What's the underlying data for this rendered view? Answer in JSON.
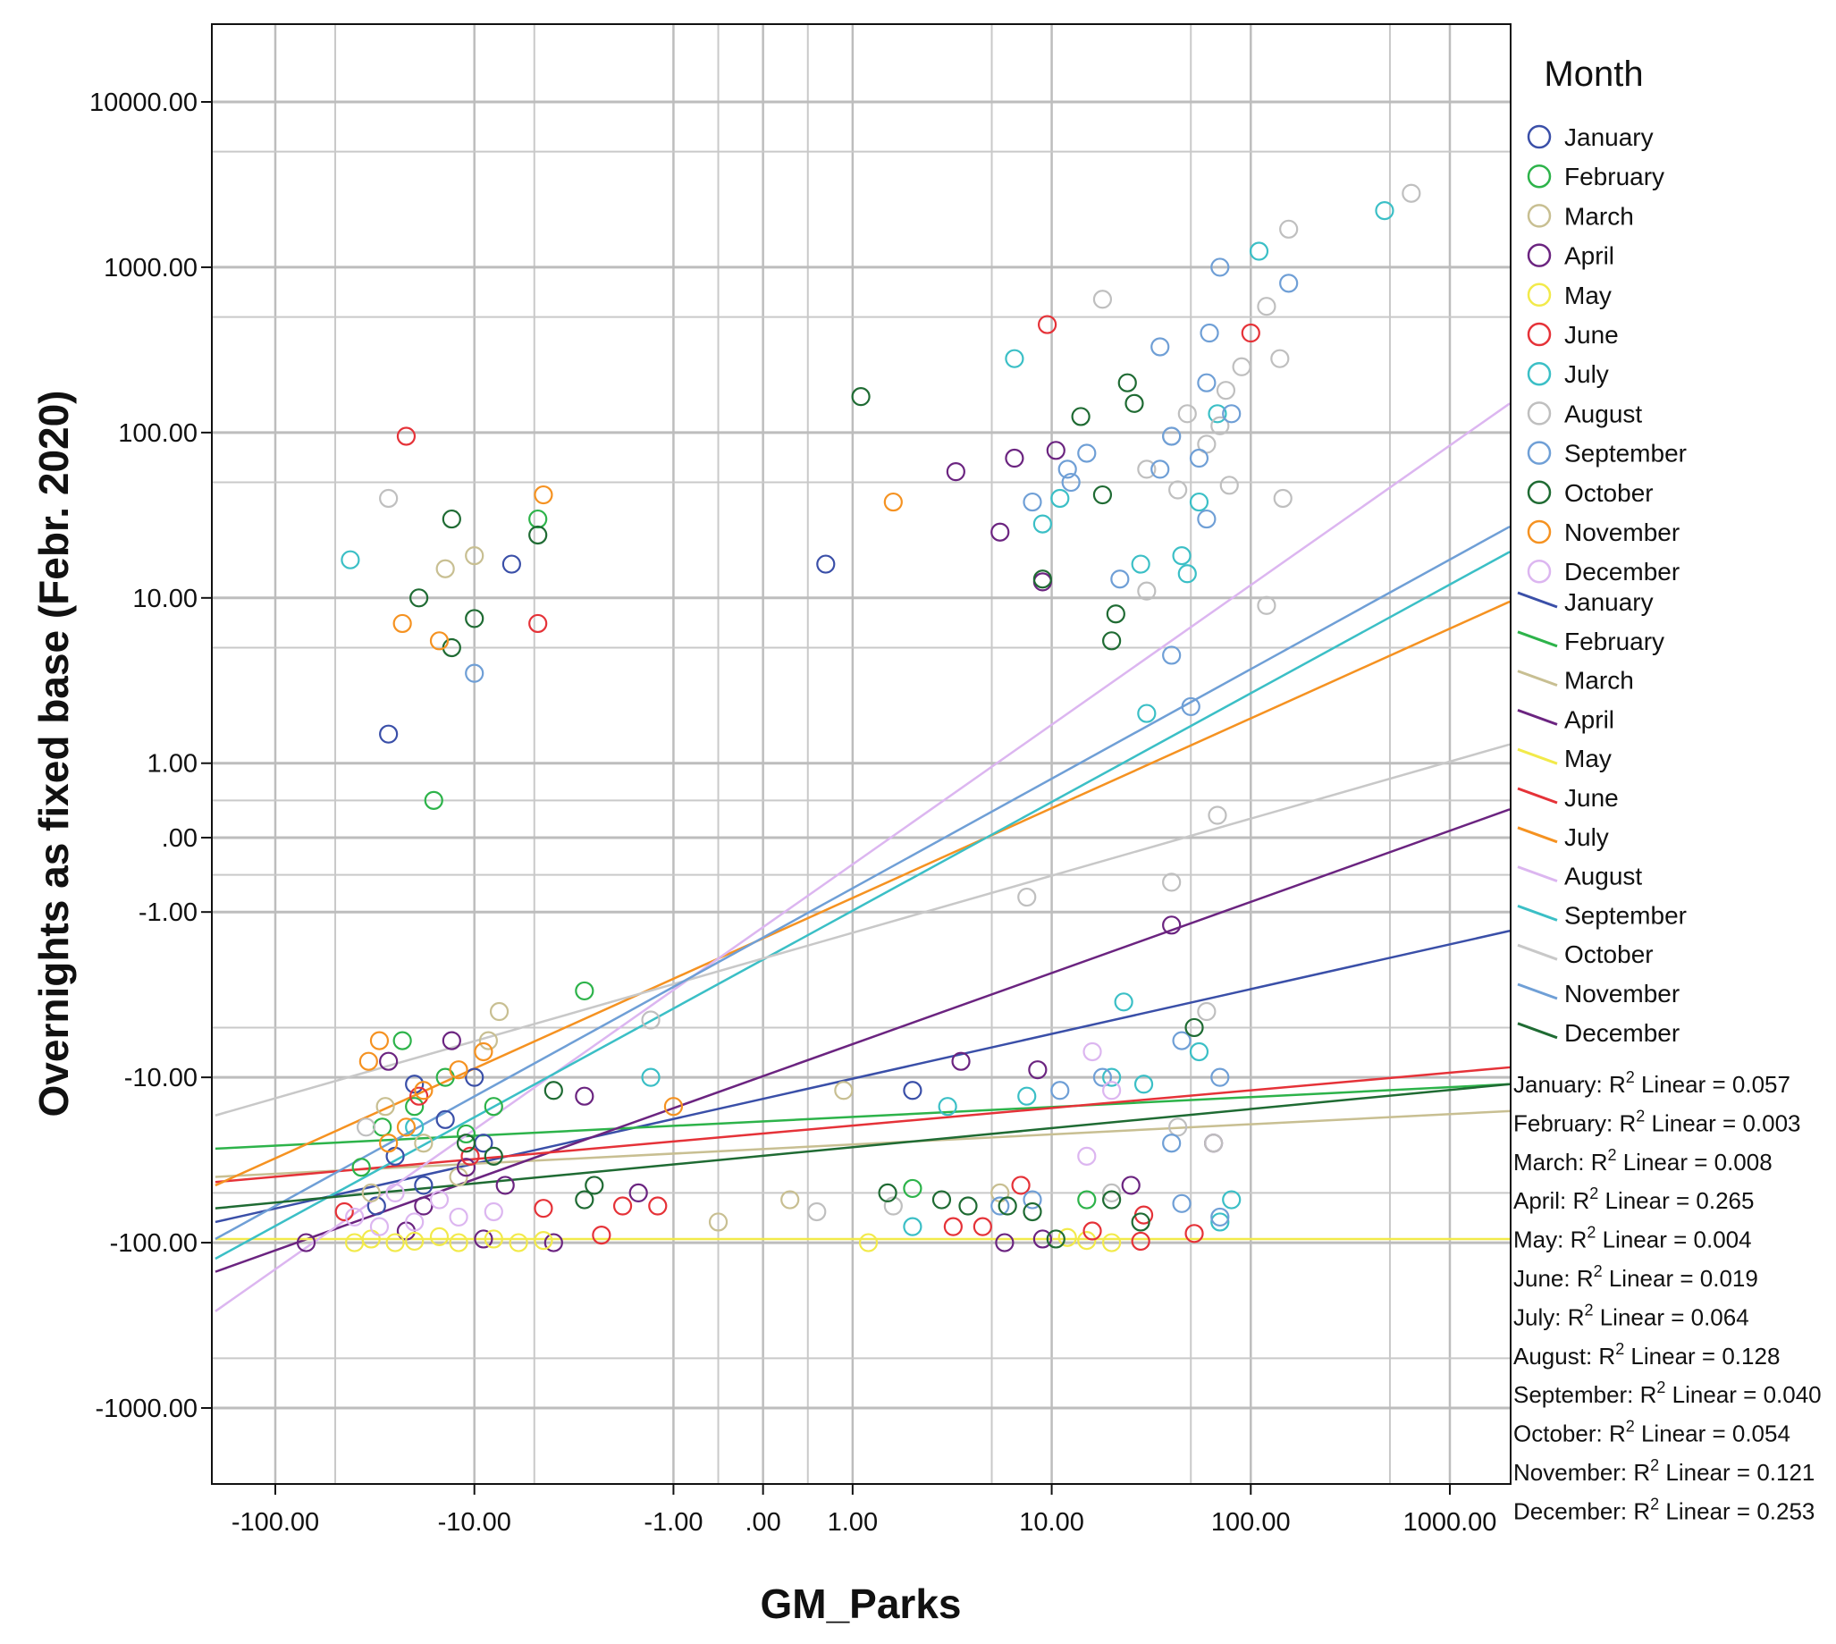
{
  "chart_data": {
    "type": "scatter",
    "xlabel": "GM_Parks",
    "ylabel": "Overnights as fixed base (Febr. 2020)",
    "x_scale": "symmetric-log",
    "y_scale": "symmetric-log",
    "x_ticks": [
      "-100.00",
      "-10.00",
      "-1.00",
      ".00",
      "1.00",
      "10.00",
      "100.00",
      "1000.00"
    ],
    "y_ticks": [
      "10000.00",
      "1000.00",
      "100.00",
      "10.00",
      "1.00",
      ".00",
      "-1.00",
      "-10.00",
      "-100.00",
      "-1000.00"
    ],
    "legend_title": "Month",
    "legend_markers": [
      "January",
      "February",
      "March",
      "April",
      "May",
      "June",
      "July",
      "August",
      "September",
      "October",
      "November",
      "December"
    ],
    "legend_lines": [
      "January",
      "February",
      "March",
      "April",
      "May",
      "June",
      "July",
      "August",
      "September",
      "October",
      "November",
      "December"
    ],
    "marker_colors": [
      "#3a4fa8",
      "#2db34a",
      "#c8bf92",
      "#6b2480",
      "#f2ea4a",
      "#e53238",
      "#3bbfc6",
      "#bfbfbf",
      "#6f9fd6",
      "#1f6b33",
      "#f59221",
      "#dcb6f0"
    ],
    "line_colors": [
      "#3a4fa8",
      "#2db34a",
      "#c8bf92",
      "#6b2480",
      "#f2ea4a",
      "#e53238",
      "#f59221",
      "#dcb6f0",
      "#3bbfc6",
      "#c8c8c8",
      "#6f9fd6",
      "#1f6b33"
    ],
    "r_squared": [
      {
        "month": "January:",
        "value": "0.057"
      },
      {
        "month": "February:",
        "value": "0.003"
      },
      {
        "month": "March:",
        "value": "0.008"
      },
      {
        "month": "April:",
        "value": "0.265"
      },
      {
        "month": "May:",
        "value": "0.004"
      },
      {
        "month": "June:",
        "value": "0.019"
      },
      {
        "month": "July:",
        "value": "0.064"
      },
      {
        "month": "August:",
        "value": "0.128"
      },
      {
        "month": "September:",
        "value": "0.040"
      },
      {
        "month": "October:",
        "value": "0.054"
      },
      {
        "month": "November:",
        "value": "0.121"
      },
      {
        "month": "December:",
        "value": "0.253"
      }
    ],
    "r2_label": "R",
    "r2_exp": "2",
    "r2_linear": "Linear =",
    "fit_lines": [
      {
        "month": "January",
        "start": [
          -200,
          -75
        ],
        "end": [
          2000,
          -1.3
        ]
      },
      {
        "month": "February",
        "start": [
          -200,
          -27
        ],
        "end": [
          2000,
          -11
        ]
      },
      {
        "month": "March",
        "start": [
          -200,
          -40
        ],
        "end": [
          2000,
          -16
        ]
      },
      {
        "month": "April",
        "start": [
          -200,
          -150
        ],
        "end": [
          2000,
          0.38
        ]
      },
      {
        "month": "May",
        "start": [
          -200,
          -95
        ],
        "end": [
          2000,
          -95
        ]
      },
      {
        "month": "June",
        "start": [
          -200,
          -43
        ],
        "end": [
          2000,
          -8.7
        ]
      },
      {
        "month": "July",
        "start": [
          -200,
          -45
        ],
        "end": [
          2000,
          9.5
        ]
      },
      {
        "month": "August",
        "start": [
          -200,
          -260
        ],
        "end": [
          2000,
          150
        ]
      },
      {
        "month": "September",
        "start": [
          -200,
          -125
        ],
        "end": [
          2000,
          19
        ]
      },
      {
        "month": "October",
        "start": [
          -200,
          -17
        ],
        "end": [
          2000,
          1.3
        ]
      },
      {
        "month": "November",
        "start": [
          -200,
          -95
        ],
        "end": [
          2000,
          27
        ]
      },
      {
        "month": "December",
        "start": [
          -200,
          -62
        ],
        "end": [
          2000,
          -11
        ]
      }
    ],
    "points": [
      {
        "m": 1,
        "x": -27,
        "y": 1.5
      },
      {
        "m": 1,
        "x": -6.5,
        "y": 16
      },
      {
        "m": 1,
        "x": 0.7,
        "y": 16
      },
      {
        "m": 1,
        "x": -20,
        "y": -11
      },
      {
        "m": 1,
        "x": -10,
        "y": -10
      },
      {
        "m": 1,
        "x": -14,
        "y": -18
      },
      {
        "m": 1,
        "x": -25,
        "y": -30
      },
      {
        "m": 1,
        "x": -18,
        "y": -45
      },
      {
        "m": 1,
        "x": -9,
        "y": -25
      },
      {
        "m": 1,
        "x": -31,
        "y": -60
      },
      {
        "m": 1,
        "x": 2,
        "y": -12
      },
      {
        "m": 2,
        "x": -16,
        "y": 0.5
      },
      {
        "m": 2,
        "x": -4.8,
        "y": 30
      },
      {
        "m": 2,
        "x": -2.8,
        "y": -3
      },
      {
        "m": 2,
        "x": -23,
        "y": -6
      },
      {
        "m": 2,
        "x": -14,
        "y": -10
      },
      {
        "m": 2,
        "x": -29,
        "y": -20
      },
      {
        "m": 2,
        "x": -37,
        "y": -35
      },
      {
        "m": 2,
        "x": -11,
        "y": -22
      },
      {
        "m": 2,
        "x": -20,
        "y": -15
      },
      {
        "m": 2,
        "x": -8,
        "y": -15
      },
      {
        "m": 2,
        "x": 15,
        "y": -55
      },
      {
        "m": 2,
        "x": 2,
        "y": -47
      },
      {
        "m": 3,
        "x": -14,
        "y": 15
      },
      {
        "m": 3,
        "x": -10,
        "y": 18
      },
      {
        "m": 3,
        "x": -7.5,
        "y": -4
      },
      {
        "m": 3,
        "x": -8.5,
        "y": -6
      },
      {
        "m": 3,
        "x": -28,
        "y": -15
      },
      {
        "m": 3,
        "x": -18,
        "y": -25
      },
      {
        "m": 3,
        "x": -12,
        "y": -40
      },
      {
        "m": 3,
        "x": -0.5,
        "y": -75
      },
      {
        "m": 3,
        "x": 0.3,
        "y": -55
      },
      {
        "m": 3,
        "x": 0.9,
        "y": -12
      },
      {
        "m": 3,
        "x": 5.5,
        "y": -50
      },
      {
        "m": 3,
        "x": -33,
        "y": -50
      },
      {
        "m": 4,
        "x": 3.3,
        "y": 58
      },
      {
        "m": 4,
        "x": 6.5,
        "y": 70
      },
      {
        "m": 4,
        "x": 10.5,
        "y": 78
      },
      {
        "m": 4,
        "x": 5.5,
        "y": 25
      },
      {
        "m": 4,
        "x": 9,
        "y": 12.5
      },
      {
        "m": 4,
        "x": -13,
        "y": -6
      },
      {
        "m": 4,
        "x": -27,
        "y": -8
      },
      {
        "m": 4,
        "x": 3.5,
        "y": -8
      },
      {
        "m": 4,
        "x": 8.5,
        "y": -9
      },
      {
        "m": 4,
        "x": 40,
        "y": -1.2
      },
      {
        "m": 4,
        "x": 65,
        "y": -25
      },
      {
        "m": 4,
        "x": -2.8,
        "y": -13
      },
      {
        "m": 4,
        "x": -1.5,
        "y": -50
      },
      {
        "m": 4,
        "x": -70,
        "y": -100
      },
      {
        "m": 4,
        "x": -4,
        "y": -100
      },
      {
        "m": 4,
        "x": 5.8,
        "y": -100
      },
      {
        "m": 4,
        "x": 9,
        "y": -95
      },
      {
        "m": 4,
        "x": -9,
        "y": -95
      },
      {
        "m": 4,
        "x": -22,
        "y": -85
      },
      {
        "m": 4,
        "x": 25,
        "y": -45
      },
      {
        "m": 4,
        "x": -11,
        "y": -35
      },
      {
        "m": 4,
        "x": -18,
        "y": -60
      },
      {
        "m": 4,
        "x": -7,
        "y": -45
      },
      {
        "m": 5,
        "x": -40,
        "y": -100
      },
      {
        "m": 5,
        "x": -33,
        "y": -95
      },
      {
        "m": 5,
        "x": -25,
        "y": -100
      },
      {
        "m": 5,
        "x": -20,
        "y": -98
      },
      {
        "m": 5,
        "x": -15,
        "y": -92
      },
      {
        "m": 5,
        "x": -12,
        "y": -100
      },
      {
        "m": 5,
        "x": -8,
        "y": -95
      },
      {
        "m": 5,
        "x": -6,
        "y": -100
      },
      {
        "m": 5,
        "x": -4.5,
        "y": -97
      },
      {
        "m": 5,
        "x": 1.2,
        "y": -100
      },
      {
        "m": 5,
        "x": 15,
        "y": -97
      },
      {
        "m": 5,
        "x": 20,
        "y": -100
      },
      {
        "m": 5,
        "x": 12,
        "y": -93
      },
      {
        "m": 6,
        "x": -22,
        "y": 95
      },
      {
        "m": 6,
        "x": -4.8,
        "y": 7
      },
      {
        "m": 6,
        "x": 9.5,
        "y": 450
      },
      {
        "m": 6,
        "x": 100,
        "y": 400
      },
      {
        "m": 6,
        "x": -19,
        "y": -13
      },
      {
        "m": 6,
        "x": -10.5,
        "y": -30
      },
      {
        "m": 6,
        "x": -2.3,
        "y": -90
      },
      {
        "m": 6,
        "x": -45,
        "y": -65
      },
      {
        "m": 6,
        "x": -4.5,
        "y": -62
      },
      {
        "m": 6,
        "x": -1.8,
        "y": -60
      },
      {
        "m": 6,
        "x": -1.2,
        "y": -60
      },
      {
        "m": 6,
        "x": 3.2,
        "y": -80
      },
      {
        "m": 6,
        "x": 4.5,
        "y": -80
      },
      {
        "m": 6,
        "x": 7,
        "y": -45
      },
      {
        "m": 6,
        "x": 16,
        "y": -85
      },
      {
        "m": 6,
        "x": 29,
        "y": -68
      },
      {
        "m": 6,
        "x": 52,
        "y": -88
      },
      {
        "m": 6,
        "x": 28,
        "y": -98
      },
      {
        "m": 7,
        "x": -42,
        "y": 17
      },
      {
        "m": 7,
        "x": 6.5,
        "y": 280
      },
      {
        "m": 7,
        "x": 9,
        "y": 28
      },
      {
        "m": 7,
        "x": 11,
        "y": 40
      },
      {
        "m": 7,
        "x": 28,
        "y": 16
      },
      {
        "m": 7,
        "x": 30,
        "y": 2
      },
      {
        "m": 7,
        "x": 48,
        "y": 14
      },
      {
        "m": 7,
        "x": 45,
        "y": 18
      },
      {
        "m": 7,
        "x": 55,
        "y": 38
      },
      {
        "m": 7,
        "x": 68,
        "y": 130
      },
      {
        "m": 7,
        "x": 110,
        "y": 1250
      },
      {
        "m": 7,
        "x": 470,
        "y": 2200
      },
      {
        "m": 7,
        "x": 23,
        "y": -3.5
      },
      {
        "m": 7,
        "x": 7.5,
        "y": -13
      },
      {
        "m": 7,
        "x": 3,
        "y": -15
      },
      {
        "m": 7,
        "x": 20,
        "y": -10
      },
      {
        "m": 7,
        "x": 29,
        "y": -11
      },
      {
        "m": 7,
        "x": 55,
        "y": -7
      },
      {
        "m": 7,
        "x": 2,
        "y": -80
      },
      {
        "m": 7,
        "x": 70,
        "y": -75
      },
      {
        "m": 7,
        "x": 80,
        "y": -55
      },
      {
        "m": 7,
        "x": -20,
        "y": -20
      },
      {
        "m": 7,
        "x": -1.3,
        "y": -10
      },
      {
        "m": 8,
        "x": -27,
        "y": 40
      },
      {
        "m": 8,
        "x": 18,
        "y": 640
      },
      {
        "m": 8,
        "x": 155,
        "y": 1700
      },
      {
        "m": 8,
        "x": 640,
        "y": 2800
      },
      {
        "m": 8,
        "x": 120,
        "y": 580
      },
      {
        "m": 8,
        "x": 140,
        "y": 280
      },
      {
        "m": 8,
        "x": 90,
        "y": 250
      },
      {
        "m": 8,
        "x": 75,
        "y": 180
      },
      {
        "m": 8,
        "x": 70,
        "y": 110
      },
      {
        "m": 8,
        "x": 60,
        "y": 85
      },
      {
        "m": 8,
        "x": 48,
        "y": 130
      },
      {
        "m": 8,
        "x": 40,
        "y": 95
      },
      {
        "m": 8,
        "x": 30,
        "y": 60
      },
      {
        "m": 8,
        "x": 43,
        "y": 45
      },
      {
        "m": 8,
        "x": 78,
        "y": 48
      },
      {
        "m": 8,
        "x": 145,
        "y": 40
      },
      {
        "m": 8,
        "x": 30,
        "y": 11
      },
      {
        "m": 8,
        "x": 120,
        "y": 9
      },
      {
        "m": 8,
        "x": 68,
        "y": 0.3
      },
      {
        "m": 8,
        "x": 7.5,
        "y": -0.8
      },
      {
        "m": 8,
        "x": 40,
        "y": -0.6
      },
      {
        "m": 8,
        "x": -1.3,
        "y": -4.5
      },
      {
        "m": 8,
        "x": 60,
        "y": -4
      },
      {
        "m": 8,
        "x": 65,
        "y": -25
      },
      {
        "m": 8,
        "x": 43,
        "y": -20
      },
      {
        "m": 8,
        "x": 0.6,
        "y": -65
      },
      {
        "m": 8,
        "x": 1.6,
        "y": -60
      },
      {
        "m": 8,
        "x": 20,
        "y": -50
      },
      {
        "m": 8,
        "x": -35,
        "y": -20
      },
      {
        "m": 9,
        "x": -10,
        "y": 3.5
      },
      {
        "m": 9,
        "x": 8,
        "y": 38
      },
      {
        "m": 9,
        "x": 12,
        "y": 60
      },
      {
        "m": 9,
        "x": 12.5,
        "y": 50
      },
      {
        "m": 9,
        "x": 15,
        "y": 75
      },
      {
        "m": 9,
        "x": 35,
        "y": 330
      },
      {
        "m": 9,
        "x": 35,
        "y": 60
      },
      {
        "m": 9,
        "x": 40,
        "y": 95
      },
      {
        "m": 9,
        "x": 55,
        "y": 70
      },
      {
        "m": 9,
        "x": 60,
        "y": 200
      },
      {
        "m": 9,
        "x": 62,
        "y": 400
      },
      {
        "m": 9,
        "x": 70,
        "y": 1000
      },
      {
        "m": 9,
        "x": 155,
        "y": 800
      },
      {
        "m": 9,
        "x": 80,
        "y": 130
      },
      {
        "m": 9,
        "x": 60,
        "y": 30
      },
      {
        "m": 9,
        "x": 40,
        "y": 4.5
      },
      {
        "m": 9,
        "x": 50,
        "y": 2.2
      },
      {
        "m": 9,
        "x": 22,
        "y": 13
      },
      {
        "m": 9,
        "x": 18,
        "y": -10
      },
      {
        "m": 9,
        "x": 11,
        "y": -12
      },
      {
        "m": 9,
        "x": 45,
        "y": -6
      },
      {
        "m": 9,
        "x": 70,
        "y": -10
      },
      {
        "m": 9,
        "x": 40,
        "y": -25
      },
      {
        "m": 9,
        "x": 5.5,
        "y": -60
      },
      {
        "m": 9,
        "x": 8,
        "y": -55
      },
      {
        "m": 9,
        "x": 45,
        "y": -58
      },
      {
        "m": 9,
        "x": 70,
        "y": -70
      },
      {
        "m": 10,
        "x": -19,
        "y": 10
      },
      {
        "m": 10,
        "x": -13,
        "y": 30
      },
      {
        "m": 10,
        "x": -4.8,
        "y": 24
      },
      {
        "m": 10,
        "x": -10,
        "y": 7.5
      },
      {
        "m": 10,
        "x": -13,
        "y": 5
      },
      {
        "m": 10,
        "x": 1.1,
        "y": 165
      },
      {
        "m": 10,
        "x": 9,
        "y": 13
      },
      {
        "m": 10,
        "x": 14,
        "y": 125
      },
      {
        "m": 10,
        "x": 24,
        "y": 200
      },
      {
        "m": 10,
        "x": 26,
        "y": 150
      },
      {
        "m": 10,
        "x": 18,
        "y": 42
      },
      {
        "m": 10,
        "x": 21,
        "y": 8
      },
      {
        "m": 10,
        "x": 20,
        "y": 5.5
      },
      {
        "m": 10,
        "x": 52,
        "y": -5
      },
      {
        "m": 10,
        "x": -4,
        "y": -12
      },
      {
        "m": 10,
        "x": -11,
        "y": -25
      },
      {
        "m": 10,
        "x": -2.5,
        "y": -45
      },
      {
        "m": 10,
        "x": -2.8,
        "y": -55
      },
      {
        "m": 10,
        "x": 1.5,
        "y": -50
      },
      {
        "m": 10,
        "x": 2.8,
        "y": -55
      },
      {
        "m": 10,
        "x": 3.8,
        "y": -60
      },
      {
        "m": 10,
        "x": 6,
        "y": -60
      },
      {
        "m": 10,
        "x": 8,
        "y": -65
      },
      {
        "m": 10,
        "x": 10.5,
        "y": -95
      },
      {
        "m": 10,
        "x": 20,
        "y": -55
      },
      {
        "m": 10,
        "x": 28,
        "y": -75
      },
      {
        "m": 10,
        "x": -8,
        "y": -30
      },
      {
        "m": 11,
        "x": -23,
        "y": 7
      },
      {
        "m": 11,
        "x": -15,
        "y": 5.5
      },
      {
        "m": 11,
        "x": -4.5,
        "y": 42
      },
      {
        "m": 11,
        "x": 1.6,
        "y": 38
      },
      {
        "m": 11,
        "x": -9,
        "y": -7
      },
      {
        "m": 11,
        "x": -12,
        "y": -9
      },
      {
        "m": 11,
        "x": -30,
        "y": -6
      },
      {
        "m": 11,
        "x": -34,
        "y": -8
      },
      {
        "m": 11,
        "x": -18,
        "y": -12
      },
      {
        "m": 11,
        "x": -1,
        "y": -15
      },
      {
        "m": 11,
        "x": -22,
        "y": -20
      },
      {
        "m": 11,
        "x": -27,
        "y": -25
      },
      {
        "m": 12,
        "x": 16,
        "y": -7
      },
      {
        "m": 12,
        "x": 20,
        "y": -12
      },
      {
        "m": 12,
        "x": 15,
        "y": -30
      },
      {
        "m": 12,
        "x": -40,
        "y": -70
      },
      {
        "m": 12,
        "x": -30,
        "y": -80
      },
      {
        "m": 12,
        "x": -20,
        "y": -75
      },
      {
        "m": 12,
        "x": -12,
        "y": -70
      },
      {
        "m": 12,
        "x": -8,
        "y": -65
      },
      {
        "m": 12,
        "x": -25,
        "y": -50
      },
      {
        "m": 12,
        "x": -15,
        "y": -55
      }
    ]
  }
}
